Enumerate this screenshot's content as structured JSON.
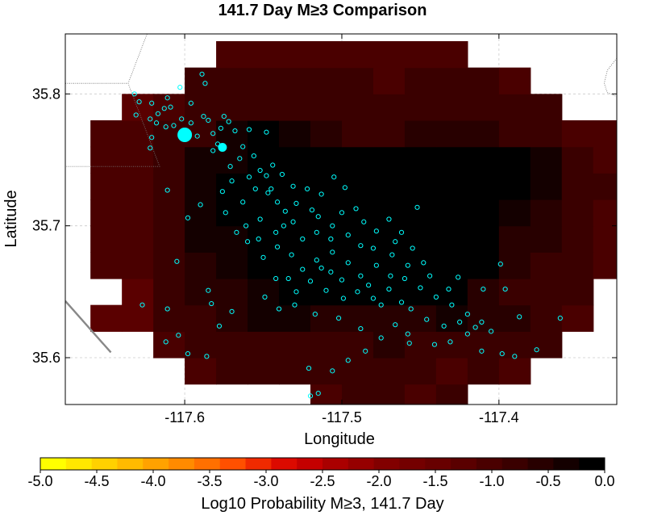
{
  "chart_data": {
    "type": "heatmap",
    "title": "141.7 Day M≥3 Comparison",
    "xlabel": "Longitude",
    "ylabel": "Latitude",
    "xlim": [
      -117.676,
      -117.325
    ],
    "ylim": [
      35.5645,
      35.8455
    ],
    "x_ticks": [
      {
        "value": -117.6,
        "label": "-117.6"
      },
      {
        "value": -117.5,
        "label": "-117.5"
      },
      {
        "value": -117.4,
        "label": "-117.4"
      }
    ],
    "y_ticks": [
      {
        "value": 35.6,
        "label": "35.6"
      },
      {
        "value": 35.7,
        "label": "35.7"
      },
      {
        "value": 35.8,
        "label": "35.8"
      }
    ],
    "grid": true,
    "colorbar": {
      "label": "Log10 Probability M≥3, 141.7 Day",
      "min": -5.0,
      "max": 0.0,
      "ticks": [
        {
          "value": -5.0,
          "label": "-5.0"
        },
        {
          "value": -4.5,
          "label": "-4.5"
        },
        {
          "value": -4.0,
          "label": "-4.0"
        },
        {
          "value": -3.5,
          "label": "-3.5"
        },
        {
          "value": -3.0,
          "label": "-3.0"
        },
        {
          "value": -2.5,
          "label": "-2.5"
        },
        {
          "value": -2.0,
          "label": "-2.0"
        },
        {
          "value": -1.5,
          "label": "-1.5"
        },
        {
          "value": -1.0,
          "label": "-1.0"
        },
        {
          "value": -0.5,
          "label": "-0.5"
        },
        {
          "value": 0.0,
          "label": "0.0"
        }
      ],
      "colors": [
        "#ffff00",
        "#ffe800",
        "#ffd100",
        "#ffba00",
        "#ffa200",
        "#ff8b00",
        "#ff7000",
        "#ff5000",
        "#f02a00",
        "#dc0a00",
        "#c40000",
        "#aa0000",
        "#960000",
        "#820000",
        "#740000",
        "#680000",
        "#5a0000",
        "#4a0000",
        "#3a0000",
        "#280000",
        "#140000",
        "#000000"
      ]
    },
    "grid_spec": {
      "lon_start": -117.68,
      "lat_start": 35.56,
      "dlon": 0.02,
      "dlat": 0.02,
      "cols": 18,
      "rows": 14,
      "cells": [
        [
          null,
          null,
          null,
          null,
          null,
          null,
          null,
          null,
          -0.95,
          -0.85,
          -0.9,
          -0.95,
          -0.85,
          null,
          null,
          null,
          null,
          null
        ],
        [
          null,
          null,
          null,
          null,
          -1.1,
          -0.9,
          -0.85,
          -0.85,
          -0.9,
          -0.85,
          -0.8,
          -0.9,
          -0.95,
          -0.9,
          -1.05,
          null,
          null,
          null
        ],
        [
          null,
          null,
          null,
          -1.05,
          -0.8,
          -0.75,
          -0.7,
          -0.75,
          -0.75,
          -0.7,
          -0.65,
          -0.7,
          -0.7,
          -0.75,
          -0.8,
          -0.8,
          null,
          null
        ],
        [
          null,
          -1.3,
          -1.2,
          -0.85,
          -0.7,
          -0.55,
          -0.35,
          -0.35,
          -0.5,
          -0.55,
          -0.55,
          -0.5,
          -0.45,
          -0.6,
          -0.65,
          -0.75,
          -1.0,
          null
        ],
        [
          null,
          null,
          -1.15,
          -0.8,
          -0.65,
          -0.6,
          -0.4,
          0.0,
          0.0,
          0.0,
          0.0,
          0.0,
          0.0,
          -0.5,
          -0.7,
          -0.75,
          -0.85,
          null
        ],
        [
          null,
          -1.1,
          -0.95,
          -0.8,
          -0.55,
          -0.35,
          -0.0,
          0.0,
          0.0,
          0.0,
          0.0,
          0.0,
          0.0,
          -0.1,
          -0.55,
          -0.75,
          -0.8,
          -1.0
        ],
        [
          null,
          -1.1,
          -1.0,
          -0.75,
          -0.45,
          -0.25,
          0.0,
          0.0,
          0.0,
          0.0,
          0.0,
          0.0,
          0.0,
          0.0,
          -0.5,
          -0.65,
          -0.85,
          -0.95
        ],
        [
          null,
          -1.0,
          -0.95,
          -0.75,
          -0.45,
          -0.2,
          0.0,
          0.0,
          0.0,
          0.0,
          0.0,
          0.0,
          0.0,
          0.0,
          -0.3,
          -0.55,
          -0.8,
          -0.95
        ],
        [
          null,
          -1.0,
          -0.95,
          -0.8,
          -0.35,
          0.0,
          0.0,
          0.0,
          0.0,
          0.0,
          0.0,
          0.0,
          0.0,
          0.0,
          -0.2,
          -0.45,
          -0.75,
          -0.9
        ],
        [
          null,
          -1.05,
          -1.0,
          -0.85,
          -0.45,
          -0.35,
          0.0,
          0.0,
          0.0,
          0.0,
          0.0,
          0.0,
          0.0,
          0.0,
          -0.2,
          -0.35,
          -0.8,
          -0.95
        ],
        [
          null,
          -1.05,
          -1.0,
          -0.85,
          -0.7,
          -0.45,
          -0.2,
          -0.3,
          -0.5,
          -0.7,
          -0.7,
          -0.65,
          -0.55,
          -0.6,
          -0.75,
          -0.85,
          -1.05,
          -1.05
        ],
        [
          null,
          null,
          -1.2,
          -1.0,
          -0.85,
          -0.85,
          -0.8,
          -0.7,
          -0.8,
          -0.9,
          -0.9,
          -0.8,
          -0.75,
          -0.85,
          -0.9,
          -0.9,
          null,
          null
        ],
        [
          null,
          null,
          null,
          null,
          -0.9,
          -0.9,
          -0.9,
          -0.85,
          -0.9,
          -0.9,
          -0.95,
          -0.9,
          -0.85,
          -0.9,
          -0.95,
          null,
          null,
          null
        ],
        [
          null,
          null,
          null,
          null,
          null,
          -1.05,
          -1.0,
          -0.95,
          -0.95,
          -0.95,
          -0.95,
          -0.95,
          -1.0,
          null,
          null,
          null,
          null,
          null
        ]
      ]
    },
    "earthquakes": {
      "color": "#00ffff",
      "large_events": [
        [
          -117.6,
          35.769
        ],
        [
          -117.576,
          35.7595
        ]
      ],
      "points": [
        [
          -117.613,
          35.789
        ],
        [
          -117.609,
          35.79
        ],
        [
          -117.603,
          35.805
        ],
        [
          -117.596,
          35.793
        ],
        [
          -117.602,
          35.781
        ],
        [
          -117.612,
          35.775
        ],
        [
          -117.622,
          35.781
        ],
        [
          -117.632,
          35.8
        ],
        [
          -117.621,
          35.793
        ],
        [
          -117.617,
          35.785
        ],
        [
          -117.607,
          35.776
        ],
        [
          -117.588,
          35.783
        ],
        [
          -117.585,
          35.78
        ],
        [
          -117.592,
          35.768
        ],
        [
          -117.582,
          35.77
        ],
        [
          -117.577,
          35.774
        ],
        [
          -117.572,
          35.779
        ],
        [
          -117.568,
          35.772
        ],
        [
          -117.559,
          35.773
        ],
        [
          -117.548,
          35.771
        ],
        [
          -117.582,
          35.757
        ],
        [
          -117.571,
          35.745
        ],
        [
          -117.565,
          35.751
        ],
        [
          -117.559,
          35.737
        ],
        [
          -117.552,
          35.742
        ],
        [
          -117.544,
          35.746
        ],
        [
          -117.548,
          35.738
        ],
        [
          -117.555,
          35.728
        ],
        [
          -117.547,
          35.725
        ],
        [
          -117.541,
          35.718
        ],
        [
          -117.536,
          35.711
        ],
        [
          -117.531,
          35.73
        ],
        [
          -117.522,
          35.728
        ],
        [
          -117.513,
          35.724
        ],
        [
          -117.519,
          35.712
        ],
        [
          -117.531,
          35.703
        ],
        [
          -117.542,
          35.695
        ],
        [
          -117.552,
          35.705
        ],
        [
          -117.563,
          35.718
        ],
        [
          -117.574,
          35.71
        ],
        [
          -117.561,
          35.7
        ],
        [
          -117.553,
          35.69
        ],
        [
          -117.541,
          35.684
        ],
        [
          -117.532,
          35.678
        ],
        [
          -117.525,
          35.69
        ],
        [
          -117.516,
          35.695
        ],
        [
          -117.506,
          35.7
        ],
        [
          -117.5,
          35.71
        ],
        [
          -117.491,
          35.713
        ],
        [
          -117.486,
          35.703
        ],
        [
          -117.478,
          35.696
        ],
        [
          -117.47,
          35.705
        ],
        [
          -117.462,
          35.695
        ],
        [
          -117.455,
          35.683
        ],
        [
          -117.448,
          35.672
        ],
        [
          -117.458,
          35.67
        ],
        [
          -117.468,
          35.678
        ],
        [
          -117.478,
          35.67
        ],
        [
          -117.488,
          35.662
        ],
        [
          -117.496,
          35.672
        ],
        [
          -117.506,
          35.68
        ],
        [
          -117.516,
          35.674
        ],
        [
          -117.525,
          35.667
        ],
        [
          -117.534,
          35.66
        ],
        [
          -117.52,
          35.658
        ],
        [
          -117.51,
          35.651
        ],
        [
          -117.5,
          35.659
        ],
        [
          -117.49,
          35.65
        ],
        [
          -117.48,
          35.645
        ],
        [
          -117.47,
          35.652
        ],
        [
          -117.46,
          35.66
        ],
        [
          -117.45,
          35.653
        ],
        [
          -117.44,
          35.646
        ],
        [
          -117.43,
          35.64
        ],
        [
          -117.42,
          35.633
        ],
        [
          -117.411,
          35.627
        ],
        [
          -117.405,
          35.62
        ],
        [
          -117.42,
          35.618
        ],
        [
          -117.435,
          35.624
        ],
        [
          -117.446,
          35.629
        ],
        [
          -117.456,
          35.637
        ],
        [
          -117.466,
          35.625
        ],
        [
          -117.475,
          35.615
        ],
        [
          -117.485,
          35.605
        ],
        [
          -117.496,
          35.598
        ],
        [
          -117.506,
          35.59
        ],
        [
          -117.515,
          35.573
        ],
        [
          -117.52,
          35.571
        ],
        [
          -117.411,
          35.605
        ],
        [
          -117.398,
          35.603
        ],
        [
          -117.39,
          35.601
        ],
        [
          -117.376,
          35.606
        ],
        [
          -117.361,
          35.63
        ],
        [
          -117.387,
          35.631
        ],
        [
          -117.612,
          35.612
        ],
        [
          -117.604,
          35.617
        ],
        [
          -117.598,
          35.603
        ],
        [
          -117.586,
          35.601
        ],
        [
          -117.578,
          35.624
        ],
        [
          -117.57,
          35.635
        ],
        [
          -117.583,
          35.641
        ],
        [
          -117.611,
          35.637
        ],
        [
          -117.627,
          35.64
        ],
        [
          -117.605,
          35.673
        ],
        [
          -117.598,
          35.706
        ],
        [
          -117.59,
          35.716
        ],
        [
          -117.611,
          35.727
        ],
        [
          -117.585,
          35.651
        ],
        [
          -117.549,
          35.646
        ],
        [
          -117.54,
          35.637
        ],
        [
          -117.529,
          35.65
        ],
        [
          -117.521,
          35.592
        ],
        [
          -117.457,
          35.611
        ],
        [
          -117.426,
          35.661
        ],
        [
          -117.41,
          35.652
        ],
        [
          -117.399,
          35.671
        ],
        [
          -117.396,
          35.652
        ],
        [
          -117.452,
          35.714
        ],
        [
          -117.498,
          35.729
        ],
        [
          -117.505,
          35.737
        ],
        [
          -117.589,
          35.815
        ],
        [
          -117.587,
          35.808
        ],
        [
          -117.622,
          35.759
        ],
        [
          -117.618,
          35.778
        ],
        [
          -117.631,
          35.784
        ],
        [
          -117.629,
          35.794
        ],
        [
          -117.621,
          35.767
        ],
        [
          -117.596,
          35.778
        ],
        [
          -117.611,
          35.797
        ],
        [
          -117.601,
          35.77
        ],
        [
          -117.575,
          35.783
        ],
        [
          -117.556,
          35.753
        ],
        [
          -117.538,
          35.739
        ],
        [
          -117.545,
          35.728
        ],
        [
          -117.529,
          35.717
        ],
        [
          -117.537,
          35.7
        ],
        [
          -117.515,
          35.707
        ],
        [
          -117.507,
          35.69
        ],
        [
          -117.496,
          35.693
        ],
        [
          -117.488,
          35.685
        ],
        [
          -117.48,
          35.683
        ],
        [
          -117.466,
          35.688
        ],
        [
          -117.469,
          35.662
        ],
        [
          -117.483,
          35.655
        ],
        [
          -117.507,
          35.665
        ],
        [
          -117.513,
          35.668
        ],
        [
          -117.499,
          35.645
        ],
        [
          -117.475,
          35.64
        ],
        [
          -117.462,
          35.642
        ],
        [
          -117.444,
          35.662
        ],
        [
          -117.432,
          35.652
        ],
        [
          -117.425,
          35.627
        ],
        [
          -117.415,
          35.623
        ],
        [
          -117.431,
          35.612
        ],
        [
          -117.441,
          35.61
        ],
        [
          -117.458,
          35.618
        ],
        [
          -117.488,
          35.622
        ],
        [
          -117.502,
          35.63
        ],
        [
          -117.517,
          35.633
        ],
        [
          -117.53,
          35.64
        ],
        [
          -117.542,
          35.66
        ],
        [
          -117.55,
          35.676
        ],
        [
          -117.56,
          35.688
        ],
        [
          -117.567,
          35.695
        ],
        [
          -117.576,
          35.726
        ],
        [
          -117.57,
          35.734
        ],
        [
          -117.563,
          35.76
        ],
        [
          -117.579,
          35.762
        ]
      ]
    },
    "boundary_lines": [
      {
        "style": "dotted",
        "points": [
          [
            -117.676,
            35.808
          ],
          [
            -117.636,
            35.808
          ],
          [
            -117.616,
            35.745
          ],
          [
            -117.676,
            35.745
          ]
        ]
      },
      {
        "style": "dotted",
        "points": [
          [
            -117.624,
            35.8455
          ],
          [
            -117.636,
            35.808
          ]
        ]
      },
      {
        "style": "dotted",
        "points": [
          [
            -117.325,
            35.827
          ],
          [
            -117.331,
            35.818
          ],
          [
            -117.333,
            35.808
          ],
          [
            -117.331,
            35.801
          ],
          [
            -117.325,
            35.798
          ]
        ]
      },
      {
        "style": "solid",
        "points": [
          [
            -117.676,
            35.643
          ],
          [
            -117.647,
            35.604
          ]
        ]
      }
    ]
  }
}
